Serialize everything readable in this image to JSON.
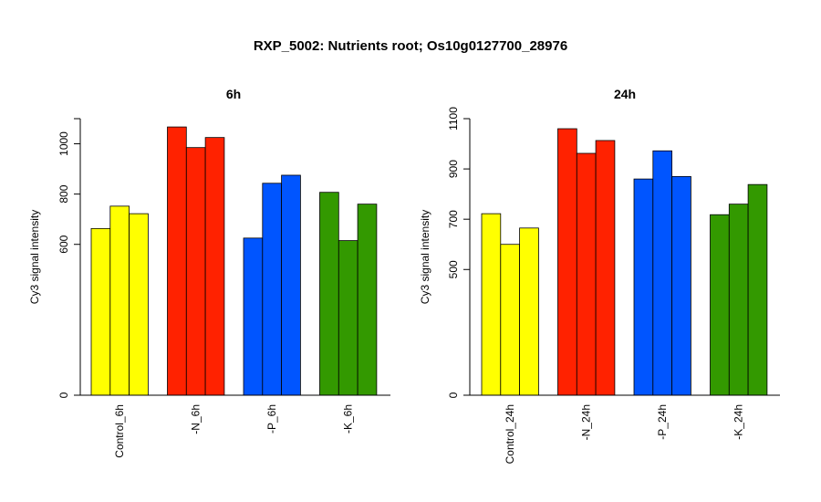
{
  "chart_data": {
    "title": "RXP_5002: Nutrients root; Os10g0127700_28976",
    "panels": [
      {
        "type": "bar",
        "title": "6h",
        "ylabel": "Cy3 signal intensity",
        "ylim": [
          0,
          1100
        ],
        "yticks": [
          0,
          600,
          800,
          1000
        ],
        "ytick_labels": [
          "0",
          "600",
          "800",
          "1000"
        ],
        "categories": [
          "Control_6h",
          "-N_6h",
          "-P_6h",
          "-K_6h"
        ],
        "groups": [
          {
            "label": "Control_6h",
            "color": "#ffff00",
            "values": [
              663,
              752,
              722
            ]
          },
          {
            "label": "-N_6h",
            "color": "#ff2200",
            "values": [
              1067,
              985,
              1025
            ]
          },
          {
            "label": "-P_6h",
            "color": "#0055ff",
            "values": [
              625,
              843,
              875
            ]
          },
          {
            "label": "-K_6h",
            "color": "#339900",
            "values": [
              807,
              615,
              760
            ]
          }
        ]
      },
      {
        "type": "bar",
        "title": "24h",
        "ylabel": "Cy3 signal intensity",
        "ylim": [
          0,
          1100
        ],
        "yticks": [
          0,
          500,
          700,
          900,
          1100
        ],
        "ytick_labels": [
          "0",
          "500",
          "700",
          "900",
          "1100"
        ],
        "categories": [
          "Control_24h",
          "-N_24h",
          "-P_24h",
          "-K_24h"
        ],
        "groups": [
          {
            "label": "Control_24h",
            "color": "#ffff00",
            "values": [
              722,
              600,
              665
            ]
          },
          {
            "label": "-N_24h",
            "color": "#ff2200",
            "values": [
              1060,
              962,
              1013
            ]
          },
          {
            "label": "-P_24h",
            "color": "#0055ff",
            "values": [
              860,
              972,
              870
            ]
          },
          {
            "label": "-K_24h",
            "color": "#339900",
            "values": [
              718,
              760,
              838
            ]
          }
        ]
      }
    ]
  }
}
